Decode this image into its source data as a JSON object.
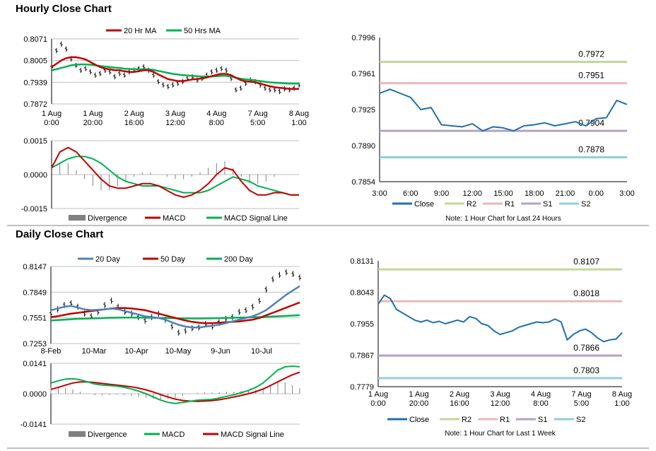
{
  "hourly_title": "Hourly Close Chart",
  "daily_title": "Daily Close Chart",
  "colors": {
    "ma20hr": "#c00000",
    "ma50hr": "#00b050",
    "close": "#1f6fb0",
    "r2": "#c3d69b",
    "r1": "#e6b9b8",
    "s1": "#b3a2c7",
    "s2": "#92cddc",
    "divergence": "#808080",
    "ma20d": "#4f81bd",
    "ma50d": "#c00000",
    "ma200d": "#00b050"
  },
  "chart_data": [
    {
      "id": "hourly_price",
      "type": "line",
      "legend": [
        "20 Hr MA",
        "50 Hrs MA"
      ],
      "y_ticks": [
        "0.8071",
        "0.8005",
        "0.7939",
        "0.7872"
      ],
      "ylim": [
        0.7872,
        0.8071
      ],
      "x_ticks": [
        [
          "1 Aug",
          "0:00"
        ],
        [
          "1 Aug",
          "20:00"
        ],
        [
          "2 Aug",
          "16:00"
        ],
        [
          "3 Aug",
          "12:00"
        ],
        [
          "4 Aug",
          "8:00"
        ],
        [
          "7 Aug",
          "5:00"
        ],
        [
          "8 Aug",
          "1:00"
        ]
      ],
      "price": [
        0.7985,
        0.8035,
        0.8055,
        0.804,
        0.801,
        0.799,
        0.7975,
        0.798,
        0.797,
        0.796,
        0.7965,
        0.7975,
        0.797,
        0.7955,
        0.7965,
        0.796,
        0.797,
        0.7975,
        0.798,
        0.7985,
        0.7975,
        0.796,
        0.794,
        0.793,
        0.7925,
        0.793,
        0.7935,
        0.794,
        0.795,
        0.7955,
        0.7945,
        0.795,
        0.796,
        0.797,
        0.7975,
        0.798,
        0.7975,
        0.795,
        0.7915,
        0.792,
        0.7935,
        0.7945,
        0.794,
        0.793,
        0.792,
        0.7915,
        0.7915,
        0.791,
        0.7918,
        0.7915,
        0.792,
        0.793
      ],
      "ma20": [
        0.7985,
        0.7995,
        0.8005,
        0.8012,
        0.8015,
        0.8015,
        0.8012,
        0.8008,
        0.8,
        0.7992,
        0.7985,
        0.798,
        0.7978,
        0.7975,
        0.7975,
        0.7972,
        0.797,
        0.797,
        0.7972,
        0.7975,
        0.7975,
        0.797,
        0.7962,
        0.7955,
        0.7948,
        0.7945,
        0.7942,
        0.7942,
        0.7944,
        0.7947,
        0.7948,
        0.795,
        0.7953,
        0.7957,
        0.7961,
        0.7964,
        0.7964,
        0.796,
        0.7952,
        0.7945,
        0.7941,
        0.794,
        0.7938,
        0.7934,
        0.793,
        0.7926,
        0.7923,
        0.7921,
        0.792,
        0.7918,
        0.7918,
        0.7918
      ],
      "ma50": [
        0.7975,
        0.7978,
        0.7982,
        0.7986,
        0.799,
        0.7992,
        0.7993,
        0.7993,
        0.7992,
        0.799,
        0.7988,
        0.7986,
        0.7985,
        0.7983,
        0.7982,
        0.798,
        0.7979,
        0.7978,
        0.7978,
        0.7978,
        0.7978,
        0.7976,
        0.7973,
        0.797,
        0.7967,
        0.7964,
        0.7962,
        0.796,
        0.7959,
        0.7958,
        0.7957,
        0.7956,
        0.7956,
        0.7956,
        0.7957,
        0.7958,
        0.7958,
        0.7956,
        0.7952,
        0.7949,
        0.7947,
        0.7946,
        0.7944,
        0.7942,
        0.794,
        0.7938,
        0.7937,
        0.7936,
        0.7935,
        0.7934,
        0.7934,
        0.7934
      ]
    },
    {
      "id": "hourly_macd",
      "type": "line",
      "legend": [
        "Divergence",
        "MACD",
        "MACD Signal Line"
      ],
      "y_ticks": [
        "0.0015",
        "0.0000",
        "-0.0015"
      ],
      "ylim": [
        -0.0015,
        0.0015
      ],
      "macd": [
        0.0003,
        0.001,
        0.0012,
        0.001,
        0.0006,
        0.0002,
        -0.0002,
        -0.0005,
        -0.0006,
        -0.0006,
        -0.0005,
        -0.0004,
        -0.0004,
        -0.0005,
        -0.0007,
        -0.0009,
        -0.001,
        -0.0009,
        -0.0007,
        -0.0004,
        0.0,
        0.0003,
        0.0002,
        -0.0003,
        -0.0007,
        -0.0009,
        -0.0009,
        -0.0008,
        -0.0008,
        -0.0009,
        -0.0009
      ],
      "signal": [
        0.0003,
        0.0005,
        0.0007,
        0.0008,
        0.0008,
        0.0007,
        0.0005,
        0.0002,
        -0.0001,
        -0.0003,
        -0.0004,
        -0.0005,
        -0.0005,
        -0.0005,
        -0.0006,
        -0.0007,
        -0.0008,
        -0.0008,
        -0.0008,
        -0.0007,
        -0.0005,
        -0.0003,
        -0.0001,
        -0.0002,
        -0.0003,
        -0.0005,
        -0.0006,
        -0.0007,
        -0.0008,
        -0.0009,
        -0.0009
      ]
    },
    {
      "id": "hourly_levels",
      "type": "line",
      "legend": [
        "Close",
        "R2",
        "R1",
        "S1",
        "S2"
      ],
      "note": "Note: 1 Hour Chart for Last 24 Hours",
      "y_ticks": [
        "0.7996",
        "0.7961",
        "0.7925",
        "0.7890",
        "0.7854"
      ],
      "ylim": [
        0.7854,
        0.7996
      ],
      "x_ticks": [
        "3:00",
        "6:00",
        "9:00",
        "12:00",
        "15:00",
        "18:00",
        "21:00",
        "0:00",
        "3:00"
      ],
      "close": [
        0.7941,
        0.7945,
        0.7941,
        0.7937,
        0.7925,
        0.7927,
        0.791,
        0.7909,
        0.7908,
        0.7911,
        0.7904,
        0.7908,
        0.7907,
        0.7904,
        0.7909,
        0.791,
        0.7912,
        0.7909,
        0.7911,
        0.7913,
        0.7909,
        0.7916,
        0.7917,
        0.7934,
        0.793
      ],
      "levels": [
        {
          "name": "R2",
          "value": 0.7972,
          "label": "0.7972"
        },
        {
          "name": "R1",
          "value": 0.7951,
          "label": "0.7951"
        },
        {
          "name": "S1",
          "value": 0.7904,
          "label": "0.7904"
        },
        {
          "name": "S2",
          "value": 0.7878,
          "label": "0.7878"
        }
      ]
    },
    {
      "id": "daily_price",
      "type": "line",
      "legend": [
        "20 Day",
        "50 Day",
        "200 Day"
      ],
      "y_ticks": [
        "0.8147",
        "0.7849",
        "0.7551",
        "0.7253"
      ],
      "ylim": [
        0.7253,
        0.8147
      ],
      "x_ticks": [
        "8-Feb",
        "10-Mar",
        "10-Apr",
        "10-May",
        "9-Jun",
        "10-Jul"
      ],
      "price": [
        0.76,
        0.765,
        0.77,
        0.772,
        0.768,
        0.76,
        0.757,
        0.762,
        0.77,
        0.775,
        0.768,
        0.762,
        0.76,
        0.756,
        0.752,
        0.756,
        0.76,
        0.753,
        0.745,
        0.738,
        0.74,
        0.743,
        0.744,
        0.748,
        0.745,
        0.75,
        0.754,
        0.756,
        0.762,
        0.764,
        0.768,
        0.775,
        0.788,
        0.8,
        0.805,
        0.808,
        0.806,
        0.802
      ],
      "ma20": [
        0.764,
        0.766,
        0.768,
        0.769,
        0.767,
        0.765,
        0.764,
        0.7645,
        0.765,
        0.766,
        0.765,
        0.763,
        0.761,
        0.759,
        0.757,
        0.756,
        0.755,
        0.753,
        0.75,
        0.747,
        0.745,
        0.744,
        0.744,
        0.745,
        0.746,
        0.747,
        0.749,
        0.751,
        0.753,
        0.755,
        0.757,
        0.76,
        0.764,
        0.77,
        0.776,
        0.782,
        0.787,
        0.792
      ],
      "ma50": [
        0.756,
        0.757,
        0.7585,
        0.76,
        0.761,
        0.762,
        0.763,
        0.764,
        0.765,
        0.766,
        0.7665,
        0.7665,
        0.766,
        0.765,
        0.764,
        0.762,
        0.76,
        0.758,
        0.756,
        0.754,
        0.752,
        0.7505,
        0.7495,
        0.749,
        0.749,
        0.7495,
        0.75,
        0.7505,
        0.751,
        0.752,
        0.753,
        0.755,
        0.758,
        0.761,
        0.764,
        0.767,
        0.77,
        0.773
      ],
      "ma200": [
        0.752,
        0.7525,
        0.753,
        0.7535,
        0.754,
        0.7542,
        0.7545,
        0.7547,
        0.755,
        0.7552,
        0.7553,
        0.7554,
        0.7554,
        0.7554,
        0.7553,
        0.7552,
        0.7551,
        0.755,
        0.7548,
        0.7546,
        0.7545,
        0.7544,
        0.7544,
        0.7545,
        0.7546,
        0.7548,
        0.755,
        0.7552,
        0.7554,
        0.7556,
        0.7558,
        0.756,
        0.7563,
        0.7566,
        0.757,
        0.7574,
        0.7578,
        0.7582
      ]
    },
    {
      "id": "daily_macd",
      "type": "line",
      "legend": [
        "Divergence",
        "MACD",
        "MACD Signal Line"
      ],
      "y_ticks": [
        "0.0141",
        "0.0000",
        "-0.0141"
      ],
      "ylim": [
        -0.0141,
        0.0141
      ],
      "macd": [
        0.005,
        0.006,
        0.0068,
        0.007,
        0.0065,
        0.0055,
        0.0045,
        0.004,
        0.0038,
        0.0035,
        0.003,
        0.0022,
        0.0012,
        0.0,
        -0.0015,
        -0.003,
        -0.004,
        -0.0045,
        -0.004,
        -0.0035,
        -0.003,
        -0.0028,
        -0.0026,
        -0.002,
        -0.0012,
        -0.0005,
        0.0005,
        0.0015,
        0.003,
        0.005,
        0.008,
        0.011,
        0.0125,
        0.0128,
        0.0125
      ],
      "signal": [
        0.002,
        0.003,
        0.004,
        0.005,
        0.0055,
        0.0055,
        0.0052,
        0.0048,
        0.0044,
        0.004,
        0.0036,
        0.0032,
        0.0026,
        0.0018,
        0.0008,
        -0.0004,
        -0.0015,
        -0.0025,
        -0.0031,
        -0.0034,
        -0.0035,
        -0.0034,
        -0.0032,
        -0.0028,
        -0.0022,
        -0.0015,
        -0.0008,
        0.0,
        0.001,
        0.0022,
        0.0038,
        0.0055,
        0.0072,
        0.0088,
        0.01
      ]
    },
    {
      "id": "daily_levels",
      "type": "line",
      "legend": [
        "Close",
        "R2",
        "R1",
        "S1",
        "S2"
      ],
      "note": "Note: 1 Hour Chart for Last 1 Week",
      "y_ticks": [
        "0.8131",
        "0.8043",
        "0.7955",
        "0.7867",
        "0.7779"
      ],
      "ylim": [
        0.7779,
        0.8131
      ],
      "x_ticks": [
        [
          "1 Aug",
          "0:00"
        ],
        [
          "1 Aug",
          "20:00"
        ],
        [
          "2 Aug",
          "16:00"
        ],
        [
          "3 Aug",
          "12:00"
        ],
        [
          "4 Aug",
          "8:00"
        ],
        [
          "7 Aug",
          "5:00"
        ],
        [
          "8 Aug",
          "1:00"
        ]
      ],
      "close": [
        0.801,
        0.8035,
        0.8025,
        0.7995,
        0.7985,
        0.7975,
        0.7965,
        0.796,
        0.7965,
        0.7958,
        0.7962,
        0.7955,
        0.796,
        0.7965,
        0.796,
        0.7975,
        0.797,
        0.7955,
        0.795,
        0.7935,
        0.7925,
        0.793,
        0.7935,
        0.7945,
        0.795,
        0.7955,
        0.796,
        0.7958,
        0.796,
        0.7968,
        0.796,
        0.791,
        0.7925,
        0.7935,
        0.794,
        0.793,
        0.7915,
        0.7905,
        0.791,
        0.7912,
        0.793
      ],
      "levels": [
        {
          "name": "R2",
          "value": 0.8107,
          "label": "0.8107"
        },
        {
          "name": "R1",
          "value": 0.8018,
          "label": "0.8018"
        },
        {
          "name": "S1",
          "value": 0.7866,
          "label": "0.7866"
        },
        {
          "name": "S2",
          "value": 0.7803,
          "label": "0.7803"
        }
      ]
    }
  ]
}
